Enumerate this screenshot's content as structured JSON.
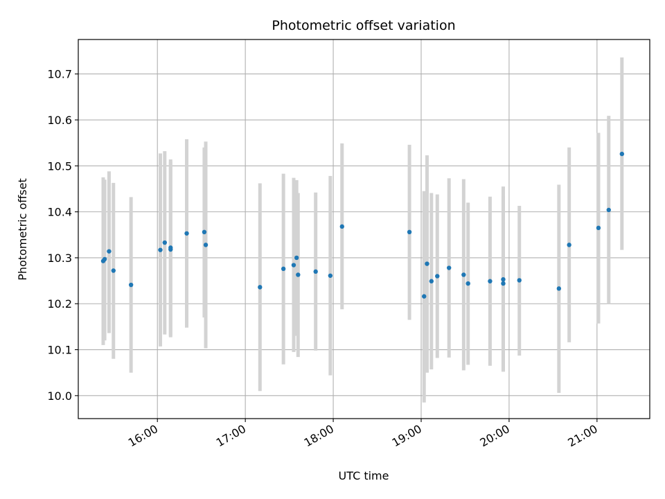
{
  "chart_data": {
    "type": "scatter",
    "title": "Photometric offset variation",
    "xlabel": "UTC time",
    "ylabel": "Photometric offset",
    "x_axis": {
      "kind": "time",
      "range": [
        "15:06",
        "21:36"
      ],
      "ticks": [
        "16:00",
        "17:00",
        "18:00",
        "19:00",
        "20:00",
        "21:00"
      ]
    },
    "y_axis": {
      "range": [
        9.95,
        10.775
      ],
      "ticks": [
        10.0,
        10.1,
        10.2,
        10.3,
        10.4,
        10.5,
        10.6,
        10.7
      ]
    },
    "grid": true,
    "colors": {
      "point": "#1f77b4",
      "errorbar": "#d3d3d3",
      "grid": "#b0b0b0"
    },
    "series": [
      {
        "points": [
          {
            "x": "15:23",
            "y": 10.293,
            "err_low": 10.11,
            "err_high": 10.475
          },
          {
            "x": "15:24",
            "y": 10.297,
            "err_low": 10.12,
            "err_high": 10.47
          },
          {
            "x": "15:27",
            "y": 10.314,
            "err_low": 10.136,
            "err_high": 10.488
          },
          {
            "x": "15:30",
            "y": 10.272,
            "err_low": 10.08,
            "err_high": 10.463
          },
          {
            "x": "15:42",
            "y": 10.241,
            "err_low": 10.05,
            "err_high": 10.432
          },
          {
            "x": "16:02",
            "y": 10.317,
            "err_low": 10.107,
            "err_high": 10.527
          },
          {
            "x": "16:05",
            "y": 10.333,
            "err_low": 10.133,
            "err_high": 10.532
          },
          {
            "x": "16:09",
            "y": 10.318,
            "err_low": 10.127,
            "err_high": 10.51
          },
          {
            "x": "16:09",
            "y": 10.322,
            "err_low": 10.13,
            "err_high": 10.514
          },
          {
            "x": "16:20",
            "y": 10.353,
            "err_low": 10.148,
            "err_high": 10.558
          },
          {
            "x": "16:32",
            "y": 10.356,
            "err_low": 10.17,
            "err_high": 10.54
          },
          {
            "x": "16:33",
            "y": 10.328,
            "err_low": 10.103,
            "err_high": 10.553
          },
          {
            "x": "17:10",
            "y": 10.236,
            "err_low": 10.01,
            "err_high": 10.462
          },
          {
            "x": "17:26",
            "y": 10.276,
            "err_low": 10.068,
            "err_high": 10.483
          },
          {
            "x": "17:33",
            "y": 10.284,
            "err_low": 10.095,
            "err_high": 10.474
          },
          {
            "x": "17:35",
            "y": 10.3,
            "err_low": 10.13,
            "err_high": 10.469
          },
          {
            "x": "17:36",
            "y": 10.263,
            "err_low": 10.084,
            "err_high": 10.441
          },
          {
            "x": "17:48",
            "y": 10.27,
            "err_low": 10.098,
            "err_high": 10.442
          },
          {
            "x": "17:58",
            "y": 10.261,
            "err_low": 10.044,
            "err_high": 10.478
          },
          {
            "x": "18:06",
            "y": 10.368,
            "err_low": 10.188,
            "err_high": 10.549
          },
          {
            "x": "18:52",
            "y": 10.356,
            "err_low": 10.165,
            "err_high": 10.546
          },
          {
            "x": "19:02",
            "y": 10.216,
            "err_low": 9.985,
            "err_high": 10.445
          },
          {
            "x": "19:04",
            "y": 10.287,
            "err_low": 10.05,
            "err_high": 10.523
          },
          {
            "x": "19:07",
            "y": 10.249,
            "err_low": 10.057,
            "err_high": 10.441
          },
          {
            "x": "19:11",
            "y": 10.26,
            "err_low": 10.082,
            "err_high": 10.438
          },
          {
            "x": "19:19",
            "y": 10.278,
            "err_low": 10.083,
            "err_high": 10.473
          },
          {
            "x": "19:29",
            "y": 10.263,
            "err_low": 10.055,
            "err_high": 10.471
          },
          {
            "x": "19:32",
            "y": 10.244,
            "err_low": 10.067,
            "err_high": 10.42
          },
          {
            "x": "19:47",
            "y": 10.249,
            "err_low": 10.065,
            "err_high": 10.433
          },
          {
            "x": "19:56",
            "y": 10.244,
            "err_low": 10.053,
            "err_high": 10.435
          },
          {
            "x": "19:56",
            "y": 10.253,
            "err_low": 10.052,
            "err_high": 10.455
          },
          {
            "x": "20:07",
            "y": 10.251,
            "err_low": 10.087,
            "err_high": 10.413
          },
          {
            "x": "20:34",
            "y": 10.233,
            "err_low": 10.006,
            "err_high": 10.459
          },
          {
            "x": "20:41",
            "y": 10.328,
            "err_low": 10.116,
            "err_high": 10.54
          },
          {
            "x": "21:01",
            "y": 10.365,
            "err_low": 10.157,
            "err_high": 10.572
          },
          {
            "x": "21:08",
            "y": 10.404,
            "err_low": 10.2,
            "err_high": 10.609
          },
          {
            "x": "21:17",
            "y": 10.526,
            "err_low": 10.317,
            "err_high": 10.736
          }
        ]
      }
    ]
  }
}
